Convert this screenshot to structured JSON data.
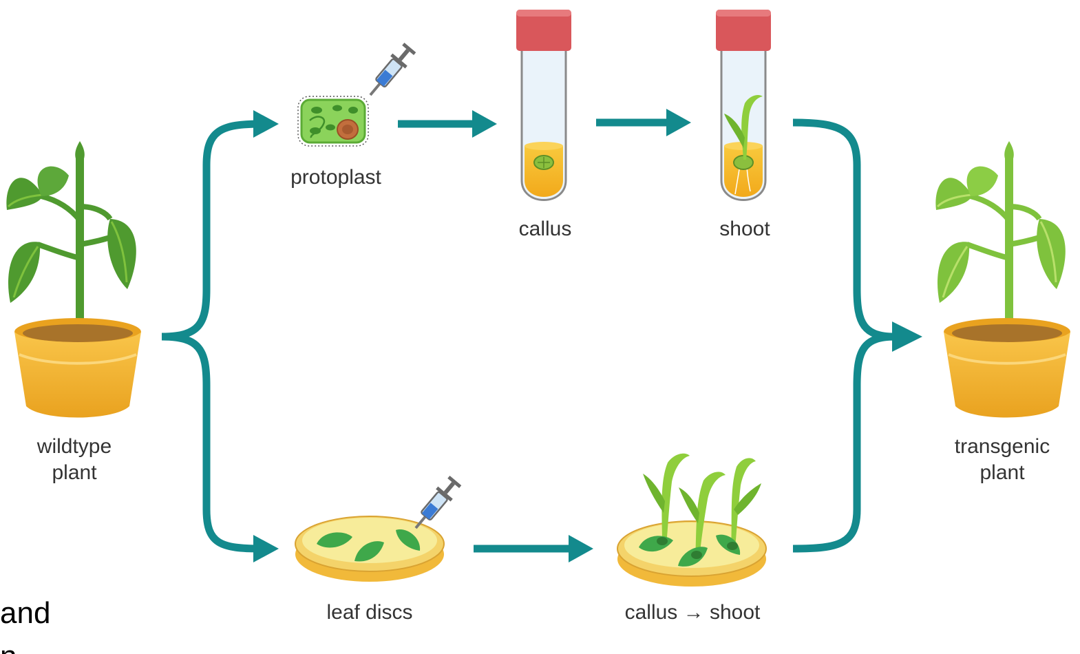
{
  "labels": {
    "wildtype_line1": "wildtype",
    "wildtype_line2": "plant",
    "protoplast": "protoplast",
    "callus": "callus",
    "shoot": "shoot",
    "leaf_discs": "leaf discs",
    "callus_shoot": "callus → shoot",
    "transgenic_line1": "transgenic",
    "transgenic_line2": "plant"
  },
  "slide_fragment": {
    "line1": "and",
    "line2": "n"
  },
  "colors": {
    "arrow": "#138a8d",
    "leaf_dark": "#4f9a2f",
    "leaf_light": "#7fc23d",
    "pot": "#f3b52f",
    "tube_cap": "#d9575b",
    "medium": "#f5b722",
    "cell": "#8bd35b"
  }
}
